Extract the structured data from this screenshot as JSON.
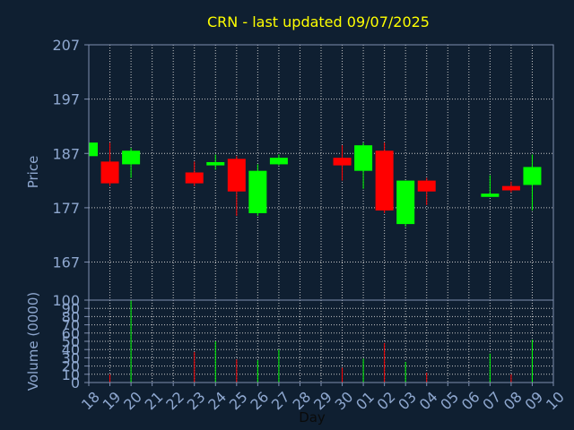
{
  "title": "CRN - last updated 09/07/2025",
  "colors": {
    "background": "#0f1f31",
    "title": "#ffff00",
    "axis_text": "#8fa8d0",
    "up": "#00ff00",
    "down": "#ff0000",
    "grid": "#c8c8c8",
    "frame": "#7f8fb0"
  },
  "chart_data": [
    {
      "type": "candlestick",
      "ylabel": "Price",
      "ylim": [
        160,
        207
      ],
      "yticks": [
        207,
        197,
        187,
        177,
        167
      ],
      "grid": true,
      "categories": [
        "18",
        "19",
        "20",
        "21",
        "22",
        "23",
        "24",
        "25",
        "26",
        "27",
        "28",
        "29",
        "30",
        "01",
        "02",
        "03",
        "04",
        "05",
        "06",
        "07",
        "08",
        "09",
        "10"
      ],
      "candles": [
        {
          "day": "18",
          "open": 186.5,
          "close": 189.0,
          "high": 189.5,
          "low": 186.0
        },
        {
          "day": "19",
          "open": 185.5,
          "close": 181.5,
          "high": 189.0,
          "low": 181.0
        },
        {
          "day": "20",
          "open": 185.0,
          "close": 187.5,
          "high": 188.0,
          "low": 182.5
        },
        {
          "day": "23",
          "open": 183.5,
          "close": 181.5,
          "high": 185.5,
          "low": 181.0
        },
        {
          "day": "24",
          "open": 184.8,
          "close": 185.4,
          "high": 186.8,
          "low": 184.0
        },
        {
          "day": "25",
          "open": 186.0,
          "close": 180.0,
          "high": 186.5,
          "low": 175.5
        },
        {
          "day": "26",
          "open": 176.0,
          "close": 183.8,
          "high": 185.0,
          "low": 175.5
        },
        {
          "day": "27",
          "open": 185.0,
          "close": 186.2,
          "high": 186.8,
          "low": 184.8
        },
        {
          "day": "30",
          "open": 186.2,
          "close": 184.8,
          "high": 188.5,
          "low": 182.0
        },
        {
          "day": "01",
          "open": 183.8,
          "close": 188.5,
          "high": 189.0,
          "low": 180.5
        },
        {
          "day": "02",
          "open": 187.5,
          "close": 176.5,
          "high": 189.0,
          "low": 176.0
        },
        {
          "day": "03",
          "open": 174.0,
          "close": 182.0,
          "high": 182.0,
          "low": 173.5
        },
        {
          "day": "04",
          "open": 182.0,
          "close": 180.0,
          "high": 182.5,
          "low": 177.5
        },
        {
          "day": "07",
          "open": 179.0,
          "close": 179.6,
          "high": 183.0,
          "low": 179.0
        },
        {
          "day": "08",
          "open": 181.0,
          "close": 180.2,
          "high": 181.8,
          "low": 179.8
        },
        {
          "day": "09",
          "open": 181.2,
          "close": 184.5,
          "high": 186.8,
          "low": 176.5
        }
      ]
    },
    {
      "type": "bar",
      "xlabel": "Day",
      "ylabel": "Volume (0000)",
      "ylim": [
        0,
        100
      ],
      "yticks": [
        100,
        90,
        80,
        70,
        60,
        50,
        40,
        30,
        20,
        10,
        0
      ],
      "grid": true,
      "categories": [
        "18",
        "19",
        "20",
        "21",
        "22",
        "23",
        "24",
        "25",
        "26",
        "27",
        "28",
        "29",
        "30",
        "01",
        "02",
        "03",
        "04",
        "05",
        "06",
        "07",
        "08",
        "09",
        "10"
      ],
      "bars": [
        {
          "day": "19",
          "value": 10,
          "direction": "down"
        },
        {
          "day": "20",
          "value": 100,
          "direction": "up"
        },
        {
          "day": "23",
          "value": 37,
          "direction": "down"
        },
        {
          "day": "24",
          "value": 50,
          "direction": "up"
        },
        {
          "day": "25",
          "value": 28,
          "direction": "down"
        },
        {
          "day": "26",
          "value": 27,
          "direction": "up"
        },
        {
          "day": "27",
          "value": 40,
          "direction": "up"
        },
        {
          "day": "30",
          "value": 18,
          "direction": "down"
        },
        {
          "day": "01",
          "value": 29,
          "direction": "up"
        },
        {
          "day": "02",
          "value": 48,
          "direction": "down"
        },
        {
          "day": "03",
          "value": 25,
          "direction": "up"
        },
        {
          "day": "04",
          "value": 12,
          "direction": "down"
        },
        {
          "day": "07",
          "value": 35,
          "direction": "up"
        },
        {
          "day": "08",
          "value": 10,
          "direction": "down"
        },
        {
          "day": "09",
          "value": 52,
          "direction": "up"
        }
      ]
    }
  ]
}
